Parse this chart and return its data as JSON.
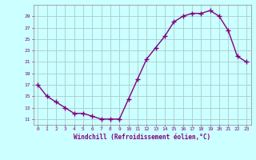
{
  "x": [
    0,
    1,
    2,
    3,
    4,
    5,
    6,
    7,
    8,
    9,
    10,
    11,
    12,
    13,
    14,
    15,
    16,
    17,
    18,
    19,
    20,
    21,
    22,
    23
  ],
  "y": [
    17,
    15,
    14,
    13,
    12,
    12,
    11.5,
    11,
    11,
    11,
    14.5,
    18,
    21.5,
    23.5,
    25.5,
    28,
    29,
    29.5,
    29.5,
    30,
    29,
    26.5,
    22,
    21
  ],
  "line_color": "#800080",
  "bg_color": "#ccffff",
  "grid_color": "#aacccc",
  "xlabel": "Windchill (Refroidissement éolien,°C)",
  "ylabel_ticks": [
    11,
    13,
    15,
    17,
    19,
    21,
    23,
    25,
    27,
    29
  ],
  "xlim": [
    -0.5,
    23.5
  ],
  "ylim": [
    10.0,
    31.0
  ],
  "xlabel_color": "#800080",
  "tick_color": "#800080"
}
